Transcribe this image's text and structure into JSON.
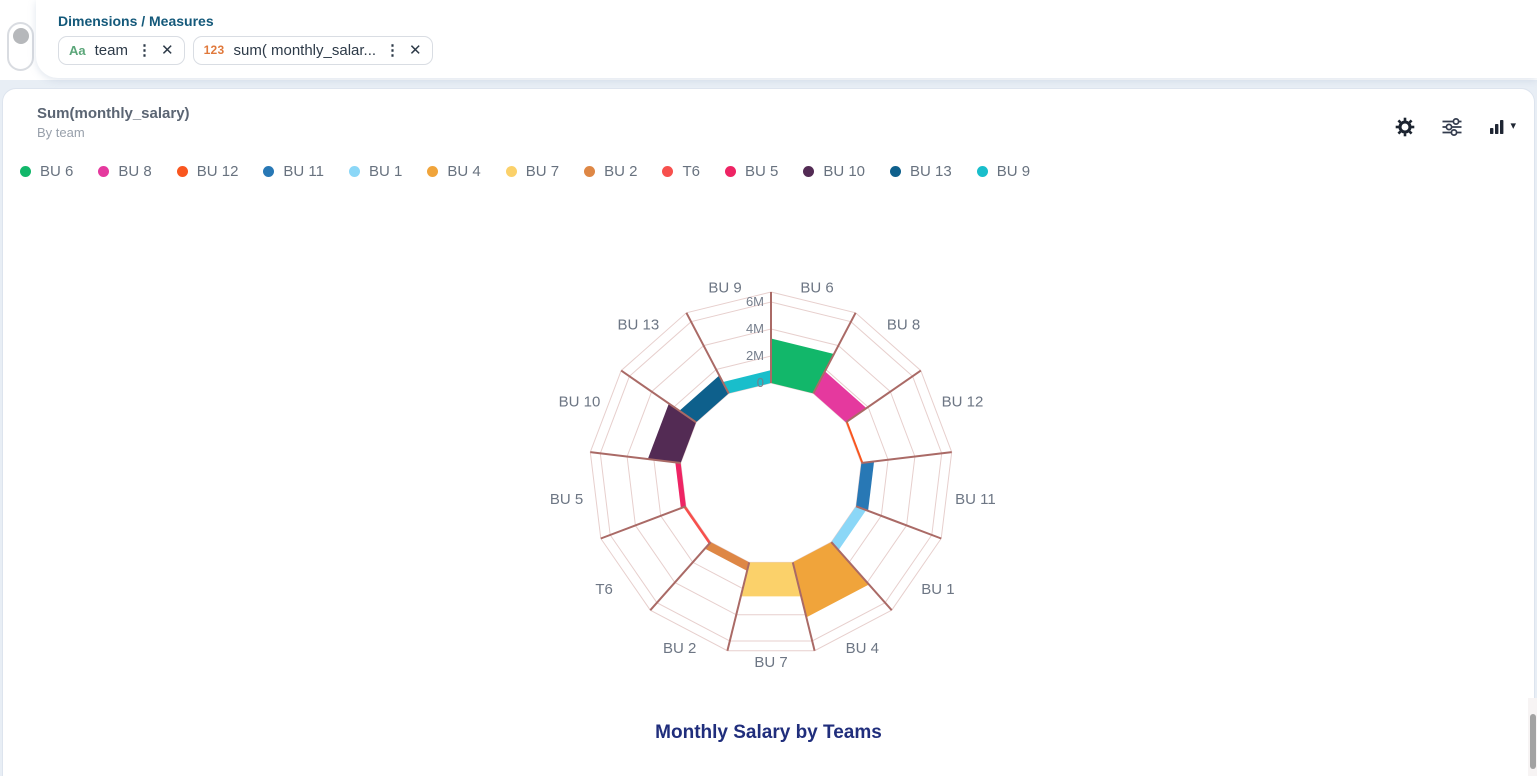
{
  "header": {
    "panel_title": "Dimensions / Measures",
    "chips": [
      {
        "type_icon": "Aa",
        "label": "team"
      },
      {
        "type_icon": "123",
        "label": "sum( monthly_salar..."
      }
    ],
    "toolbar_icons": [
      "settings-gear",
      "filter-sliders",
      "chart-type-bar"
    ]
  },
  "icons": {
    "menu_dots": "⋮",
    "close": "✕",
    "caret_down": "▾"
  },
  "card": {
    "title": "Sum(monthly_salary)",
    "subtitle": "By team"
  },
  "theme": {
    "accent_teal": "#14597a",
    "title_navy": "#202e7c",
    "text_gray": "#68727f"
  },
  "chart_data": {
    "type": "bar",
    "subtype": "polar-nightingale",
    "title": "Monthly Salary by Teams",
    "measure": "Sum(monthly_salary)",
    "dimension": "team",
    "legend_position": "top",
    "grid": true,
    "categories": [
      "BU 6",
      "BU 8",
      "BU 12",
      "BU 11",
      "BU 1",
      "BU 4",
      "BU 7",
      "BU 2",
      "T6",
      "BU 5",
      "BU 10",
      "BU 13",
      "BU 9"
    ],
    "values": [
      3300000,
      1850000,
      150000,
      950000,
      800000,
      4200000,
      2600000,
      650000,
      200000,
      400000,
      2450000,
      1500000,
      950000
    ],
    "colors": [
      "#12b76a",
      "#e5399e",
      "#f9561f",
      "#2878b5",
      "#8bd7f7",
      "#f0a43b",
      "#fbd16a",
      "#de8745",
      "#f7504d",
      "#ee2464",
      "#532b54",
      "#0e608c",
      "#19becb"
    ],
    "radial_ticks": [
      {
        "label": "0",
        "value": 0
      },
      {
        "label": "2M",
        "value": 2000000
      },
      {
        "label": "4M",
        "value": 4000000
      },
      {
        "label": "6M",
        "value": 6000000
      }
    ],
    "ylim": [
      0,
      6700000
    ],
    "grid_color": "#e7cfcd",
    "divider_color": "#aa6a66",
    "label_color": "#6d7684",
    "tick_color": "#757e8c"
  }
}
